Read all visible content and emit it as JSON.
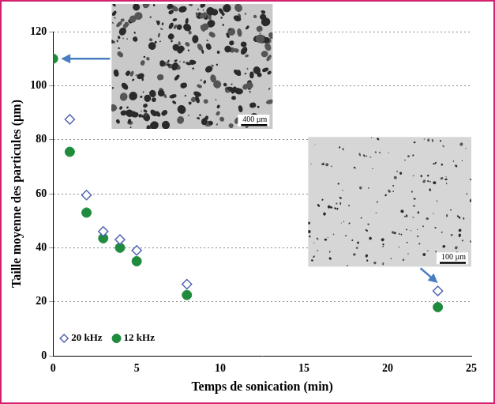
{
  "chart_data": {
    "type": "scatter",
    "x_label": "Temps de sonication (min)",
    "y_label": "Taille moyenne des particules (µm)",
    "series": [
      {
        "name": "20 kHz",
        "color": "#4f63b0",
        "marker": "open_diamond",
        "x": [
          1,
          2,
          3,
          4,
          5,
          8,
          23
        ],
        "values": [
          87.5,
          59.5,
          46,
          43,
          39,
          26.5,
          24
        ]
      },
      {
        "name": "12 kHz",
        "color": "#1e8c3c",
        "marker": "circle",
        "x": [
          0,
          1,
          2,
          3,
          4,
          5,
          8,
          23
        ],
        "values": [
          110,
          75.5,
          53,
          43.5,
          40,
          35,
          22.5,
          18
        ]
      }
    ],
    "xlim": [
      0,
      25
    ],
    "xticks": [
      0,
      5,
      10,
      15,
      20,
      25
    ],
    "ylim": [
      0,
      120
    ],
    "yticks": [
      0,
      20,
      40,
      60,
      80,
      100,
      120
    ],
    "grid": true,
    "legend": "lower left",
    "annotations": [
      "400 µm",
      "100 µm"
    ]
  }
}
